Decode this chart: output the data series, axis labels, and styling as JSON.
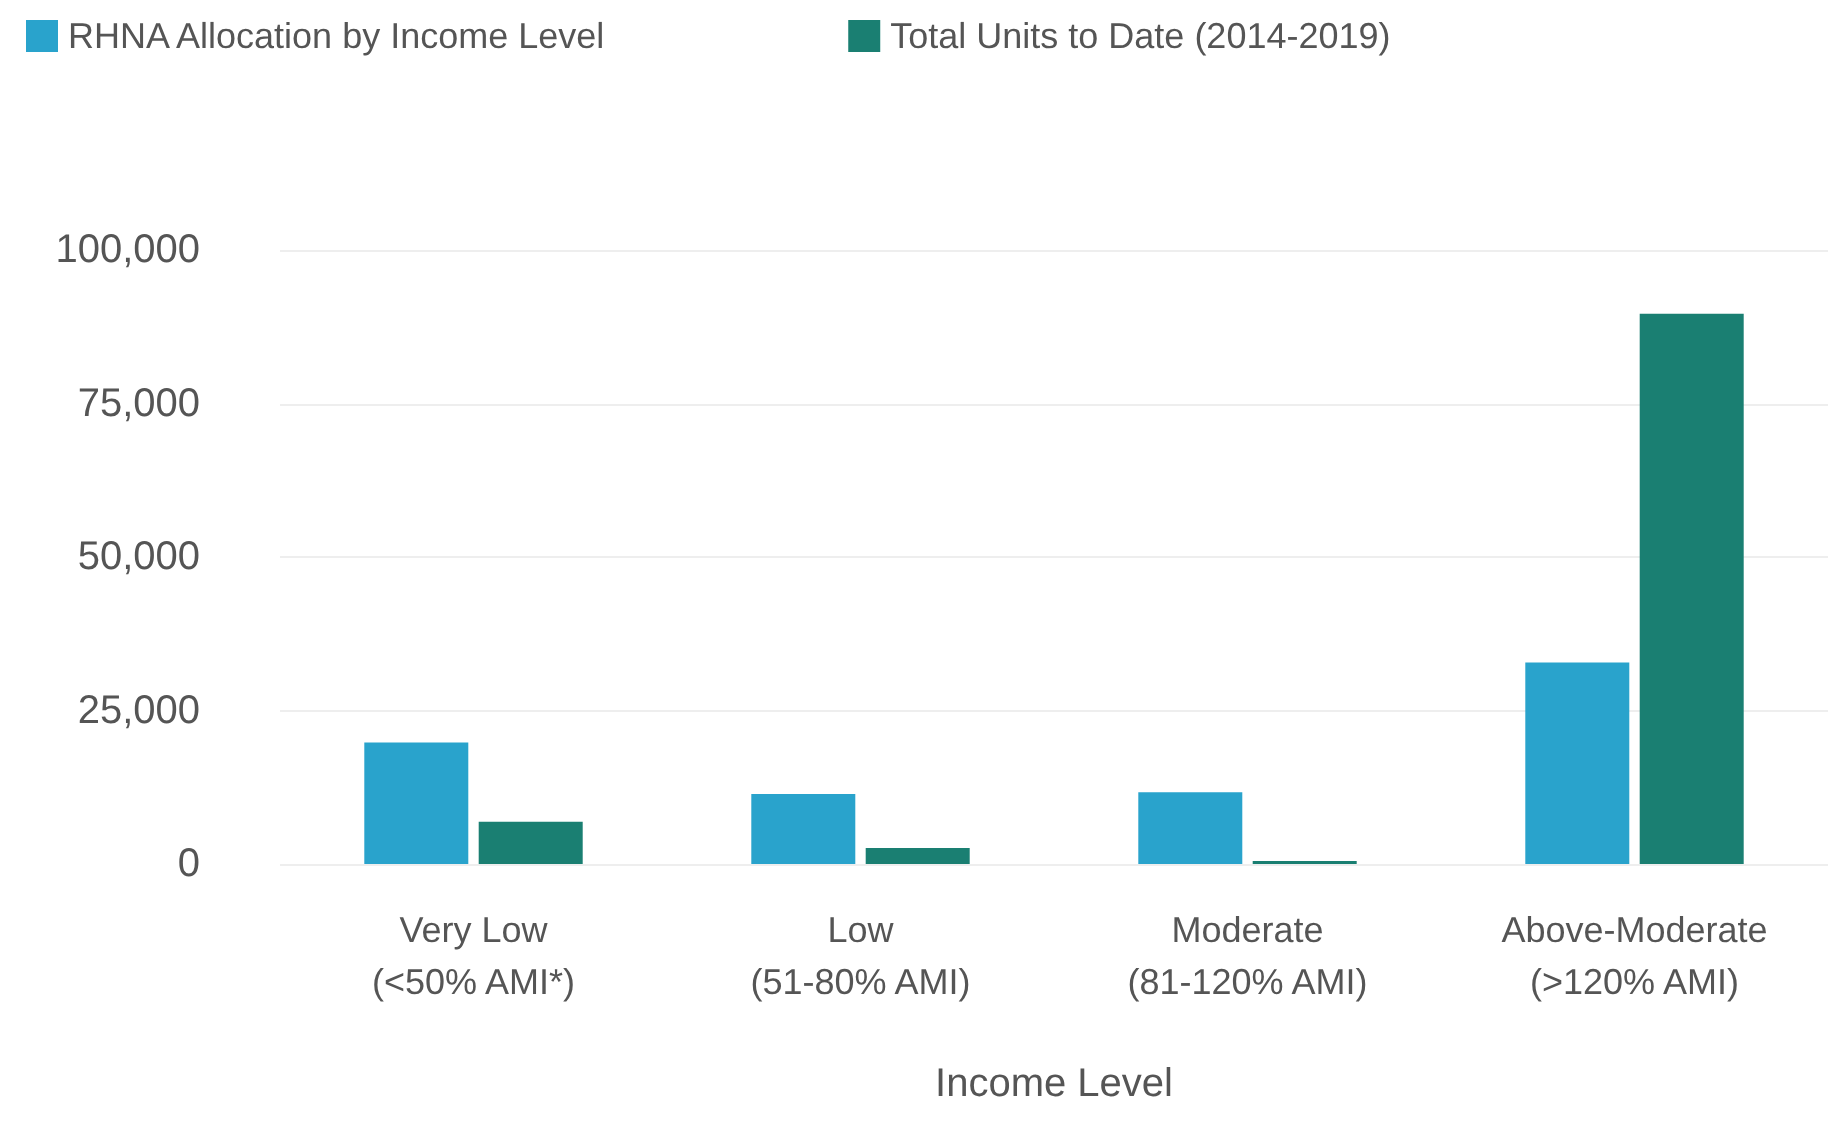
{
  "chart_data": {
    "type": "bar",
    "xlabel": "Income Level",
    "categories": [
      "Very Low\n(<50% AMI*)",
      "Low\n(51-80% AMI)",
      "Moderate\n(81-120% AMI)",
      "Above-Moderate\n(>120% AMI)"
    ],
    "series": [
      {
        "name": "RHNA Allocation by Income Level",
        "color": "#29a3cc",
        "values": [
          19800,
          11400,
          11700,
          32800
        ]
      },
      {
        "name": "Total Units to Date (2014-2019)",
        "color": "#1a7f72",
        "values": [
          6900,
          2600,
          500,
          89600
        ]
      }
    ],
    "ylim": [
      0,
      100000
    ],
    "yticks": [
      0,
      {
        "value": 25000,
        "label": "25,000"
      },
      {
        "value": 50000,
        "label": "50,000"
      },
      {
        "value": 75000,
        "label": "75,000"
      },
      {
        "value": 100000,
        "label": "100,000"
      }
    ],
    "grid": "y",
    "legend": "top left"
  }
}
